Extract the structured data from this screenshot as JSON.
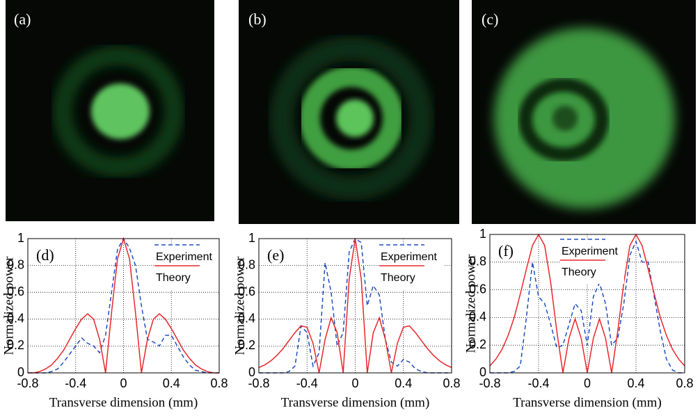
{
  "panels": [
    {
      "label": "(a)"
    },
    {
      "label": "(b)"
    },
    {
      "label": "(c)"
    }
  ],
  "chart_data": [
    {
      "type": "line",
      "panel_label": "(d)",
      "xlabel": "Transverse dimension (mm)",
      "ylabel": "Normalized power",
      "xlim": [
        -0.8,
        0.8
      ],
      "xticks": [
        -0.8,
        -0.4,
        0,
        0.4,
        0.8
      ],
      "ylim": [
        0,
        1
      ],
      "yticks": [
        0,
        0.2,
        0.4,
        0.6,
        0.8,
        1
      ],
      "grid": true,
      "x": [
        -0.8,
        -0.75,
        -0.7,
        -0.65,
        -0.6,
        -0.55,
        -0.5,
        -0.45,
        -0.4,
        -0.35,
        -0.3,
        -0.25,
        -0.2,
        -0.15,
        -0.1,
        -0.05,
        0,
        0.05,
        0.1,
        0.15,
        0.2,
        0.25,
        0.3,
        0.35,
        0.4,
        0.45,
        0.5,
        0.55,
        0.6,
        0.65,
        0.7,
        0.75,
        0.8
      ],
      "series": [
        {
          "name": "Experiment",
          "color": "#1f4fbf",
          "dashed": true,
          "values": [
            0,
            0,
            0,
            0,
            0.01,
            0.03,
            0.08,
            0.14,
            0.2,
            0.26,
            0.22,
            0.2,
            0.15,
            0.28,
            0.6,
            0.92,
            1,
            0.93,
            0.8,
            0.5,
            0.25,
            0.23,
            0.2,
            0.28,
            0.28,
            0.2,
            0.12,
            0.06,
            0.02,
            0.01,
            0,
            0,
            0
          ]
        },
        {
          "name": "Theory",
          "color": "#e8262a",
          "dashed": false,
          "values": [
            0,
            0,
            0.01,
            0.03,
            0.06,
            0.11,
            0.17,
            0.25,
            0.33,
            0.4,
            0.44,
            0.4,
            0.25,
            0,
            0.45,
            0.85,
            1,
            0.85,
            0.45,
            0,
            0.25,
            0.4,
            0.44,
            0.4,
            0.33,
            0.25,
            0.17,
            0.11,
            0.06,
            0.03,
            0.01,
            0,
            0
          ]
        }
      ]
    },
    {
      "type": "line",
      "panel_label": "(e)",
      "xlabel": "Transverse dimension (mm)",
      "ylabel": "Normalized power",
      "xlim": [
        -0.8,
        0.8
      ],
      "xticks": [
        -0.8,
        -0.4,
        0,
        0.4,
        0.8
      ],
      "ylim": [
        0,
        1
      ],
      "yticks": [
        0,
        0.2,
        0.4,
        0.6,
        0.8,
        1
      ],
      "grid": true,
      "x": [
        -0.8,
        -0.75,
        -0.7,
        -0.65,
        -0.6,
        -0.55,
        -0.5,
        -0.45,
        -0.4,
        -0.35,
        -0.3,
        -0.25,
        -0.2,
        -0.15,
        -0.1,
        -0.05,
        0,
        0.05,
        0.1,
        0.15,
        0.2,
        0.25,
        0.3,
        0.35,
        0.4,
        0.45,
        0.5,
        0.55,
        0.6,
        0.65,
        0.7,
        0.75,
        0.8
      ],
      "series": [
        {
          "name": "Experiment",
          "color": "#1f4fbf",
          "dashed": true,
          "values": [
            0,
            0,
            0,
            0,
            0,
            0.01,
            0.05,
            0.35,
            0.3,
            0.05,
            0.15,
            0.82,
            0.6,
            0.2,
            0.3,
            0.9,
            1,
            0.97,
            0.5,
            0.65,
            0.58,
            0.25,
            0.08,
            0.05,
            0.1,
            0.08,
            0.03,
            0.01,
            0,
            0,
            0,
            0,
            0
          ]
        },
        {
          "name": "Theory",
          "color": "#e8262a",
          "dashed": false,
          "values": [
            0.04,
            0.06,
            0.09,
            0.13,
            0.18,
            0.24,
            0.3,
            0.35,
            0.34,
            0.22,
            0,
            0.25,
            0.41,
            0.3,
            0,
            0.7,
            1,
            0.7,
            0,
            0.3,
            0.41,
            0.25,
            0,
            0.22,
            0.34,
            0.35,
            0.3,
            0.24,
            0.18,
            0.13,
            0.09,
            0.06,
            0.04
          ]
        }
      ]
    },
    {
      "type": "line",
      "panel_label": "(f)",
      "xlabel": "Transverse dimension (mm)",
      "ylabel": "Normalized power",
      "xlim": [
        -0.8,
        0.8
      ],
      "xticks": [
        -0.8,
        -0.4,
        0,
        0.4,
        0.8
      ],
      "ylim": [
        0,
        1
      ],
      "yticks": [
        0,
        0.2,
        0.4,
        0.6,
        0.8,
        1
      ],
      "grid": true,
      "x": [
        -0.8,
        -0.75,
        -0.7,
        -0.65,
        -0.6,
        -0.55,
        -0.5,
        -0.45,
        -0.4,
        -0.35,
        -0.3,
        -0.25,
        -0.2,
        -0.15,
        -0.1,
        -0.05,
        0,
        0.05,
        0.1,
        0.15,
        0.2,
        0.25,
        0.3,
        0.35,
        0.4,
        0.45,
        0.5,
        0.55,
        0.6,
        0.65,
        0.7,
        0.75,
        0.8
      ],
      "series": [
        {
          "name": "Experiment",
          "color": "#1f4fbf",
          "dashed": true,
          "values": [
            0,
            0,
            0,
            0,
            0.01,
            0.05,
            0.4,
            0.8,
            0.55,
            0.5,
            0.35,
            0.18,
            0.2,
            0.35,
            0.5,
            0.45,
            0.2,
            0.55,
            0.65,
            0.5,
            0.2,
            0.25,
            0.5,
            0.85,
            0.95,
            0.8,
            0.8,
            0.55,
            0.3,
            0.1,
            0.02,
            0,
            0
          ]
        },
        {
          "name": "Theory",
          "color": "#e8262a",
          "dashed": false,
          "values": [
            0.05,
            0.1,
            0.17,
            0.27,
            0.4,
            0.57,
            0.75,
            0.92,
            1,
            0.92,
            0.65,
            0.3,
            0,
            0.25,
            0.39,
            0.25,
            0,
            0.25,
            0.39,
            0.25,
            0,
            0.3,
            0.65,
            0.92,
            1,
            0.92,
            0.75,
            0.57,
            0.4,
            0.27,
            0.17,
            0.1,
            0.05
          ]
        }
      ]
    }
  ]
}
